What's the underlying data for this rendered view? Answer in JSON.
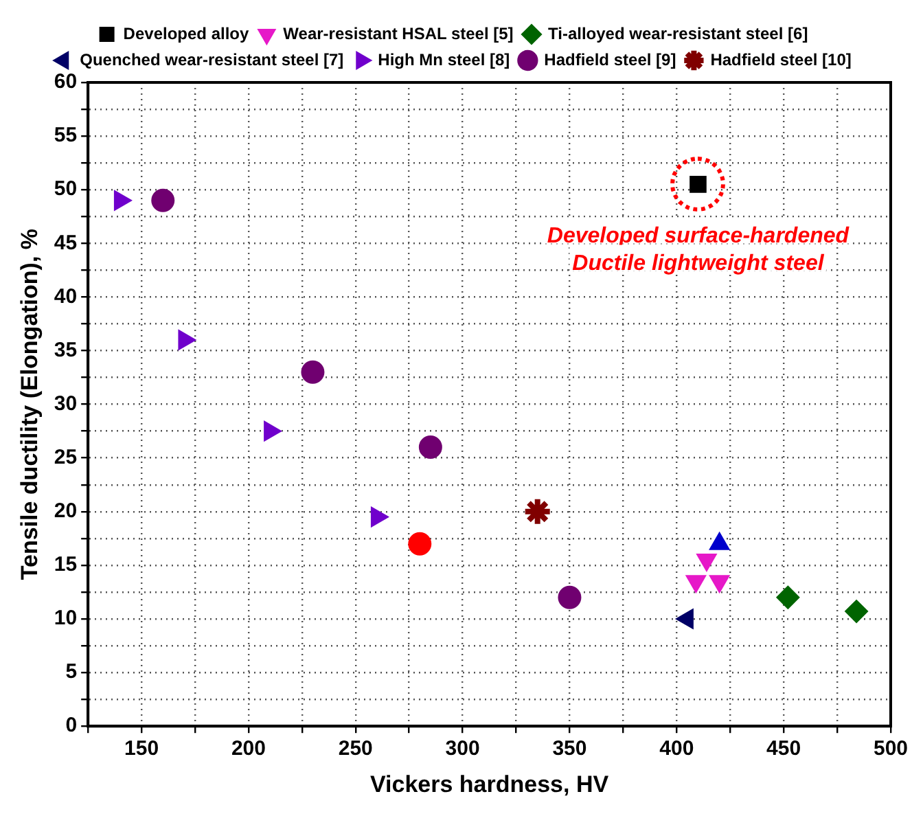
{
  "chart_data": {
    "type": "scatter",
    "xlabel": "Vickers hardness, HV",
    "ylabel": "Tensile ductility (Elongation), %",
    "xlim": [
      125,
      500
    ],
    "ylim": [
      0,
      60
    ],
    "xticks": [
      {
        "value": 125,
        "label": null
      },
      150,
      {
        "value": 175,
        "label": null
      },
      200,
      {
        "value": 225,
        "label": null
      },
      250,
      {
        "value": 275,
        "label": null
      },
      300,
      {
        "value": 325,
        "label": null
      },
      350,
      {
        "value": 375,
        "label": null
      },
      400,
      {
        "value": 425,
        "label": null
      },
      450,
      {
        "value": 475,
        "label": null
      },
      500
    ],
    "yticks": [
      0,
      {
        "value": 2.5,
        "label": null
      },
      5,
      {
        "value": 7.5,
        "label": null
      },
      10,
      {
        "value": 12.5,
        "label": null
      },
      15,
      {
        "value": 17.5,
        "label": null
      },
      20,
      {
        "value": 22.5,
        "label": null
      },
      25,
      {
        "value": 27.5,
        "label": null
      },
      30,
      {
        "value": 32.5,
        "label": null
      },
      35,
      {
        "value": 37.5,
        "label": null
      },
      40,
      {
        "value": 42.5,
        "label": null
      },
      45,
      {
        "value": 47.5,
        "label": null
      },
      50,
      {
        "value": 52.5,
        "label": null
      },
      55,
      {
        "value": 57.5,
        "label": null
      },
      60
    ],
    "grid": true,
    "legend": "top",
    "line_style": "dotted",
    "series": [
      {
        "name": "Developed alloy",
        "color": "#000000",
        "marker": "square",
        "x": [
          410
        ],
        "values": [
          50.5
        ]
      },
      {
        "color": "#ff0000",
        "marker": "circle",
        "x": [
          280
        ],
        "values": [
          17
        ]
      },
      {
        "color": "#0000cc",
        "marker": "triangle",
        "x": [
          420
        ],
        "values": [
          17
        ]
      },
      {
        "name": "Wear-resistant HSAL steel [5]",
        "color": "#e619c8",
        "marker": "triangle-down",
        "x": [
          414,
          409,
          420
        ],
        "values": [
          15.5,
          13.5,
          13.5
        ]
      },
      {
        "name": "Ti-alloyed wear-resistant steel [6]",
        "color": "#006400",
        "marker": "diamond",
        "x": [
          452,
          484
        ],
        "values": [
          12,
          10.7
        ]
      },
      {
        "name": "Quenched wear-resistant steel [7]",
        "color": "#000066",
        "marker": "triangle-left",
        "x": [
          405
        ],
        "values": [
          10
        ]
      },
      {
        "name": "High Mn steel [8]",
        "color": "#7000cc",
        "marker": "triangle-right",
        "x": [
          140,
          170,
          210,
          260
        ],
        "values": [
          49,
          36,
          27.5,
          19.5
        ]
      },
      {
        "name": "Hadfield steel [9]",
        "color": "#700070",
        "marker": "circle",
        "x": [
          160,
          230,
          285,
          350
        ],
        "values": [
          49,
          33,
          26,
          12
        ]
      },
      {
        "name": "Hadfield steel [10]",
        "color": "#800000",
        "marker": "cross",
        "x": [
          335
        ],
        "values": [
          20
        ]
      }
    ],
    "annotations": [
      {
        "text": "Developed surface-hardened\nDuctile lightweight steel",
        "x": 410,
        "y": 50.5
      }
    ]
  }
}
